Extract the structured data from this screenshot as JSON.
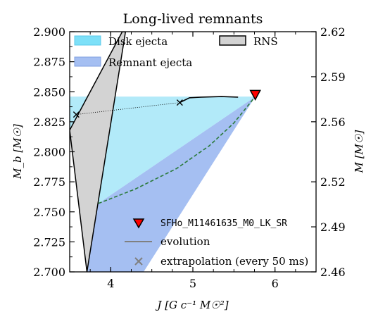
{
  "chart_data": {
    "type": "area",
    "title": "Long-lived remnants",
    "xlabel": "J [G c⁻¹ M☉²]",
    "ylabel": "M_b [M☉]",
    "ylabel_right": "M [M☉]",
    "xlim": [
      3.5,
      6.5
    ],
    "ylim": [
      2.7,
      2.9
    ],
    "x_ticks": [
      "4",
      "5",
      "6"
    ],
    "y_ticks": [
      "2.700",
      "2.725",
      "2.750",
      "2.775",
      "2.800",
      "2.825",
      "2.850",
      "2.875",
      "2.900"
    ],
    "y_ticks_right": [
      "2.46",
      "2.49",
      "2.52",
      "2.56",
      "2.59",
      "2.62"
    ],
    "colors": {
      "disk": "#b2eaf9",
      "remnant": "#a5bff2",
      "rns": "#d3d3d3",
      "boundary": "#2a7a3a",
      "marker": "#ff0000"
    },
    "legend_top": [
      {
        "label": "Disk ejecta",
        "color": "#7de0f8"
      },
      {
        "label": "Remnant ejecta",
        "color": "#a5bff2"
      },
      {
        "label": "RNS",
        "color": "#d3d3d3"
      }
    ],
    "legend_bottom": [
      {
        "label": "SFHo_M11461635_M0_LK_SR",
        "symbol": "red-down-triangle"
      },
      {
        "label": "evolution",
        "symbol": "gray-line"
      },
      {
        "label": "extrapolation (every 50 ms)",
        "symbol": "gray-x"
      }
    ],
    "rns_band": {
      "left": [
        [
          3.5,
          2.818
        ],
        [
          4.14,
          2.9
        ]
      ],
      "right": [
        [
          3.71,
          2.7
        ],
        [
          4.18,
          2.9
        ]
      ]
    },
    "disk_region": [
      [
        3.37,
        2.846
      ],
      [
        5.76,
        2.846
      ],
      [
        3.85,
        2.757
      ]
    ],
    "remnant_region": [
      [
        3.85,
        2.757
      ],
      [
        5.76,
        2.846
      ],
      [
        4.4,
        2.7
      ],
      [
        3.71,
        2.7
      ]
    ],
    "boundary_curve": [
      [
        3.85,
        2.757
      ],
      [
        4.3,
        2.769
      ],
      [
        4.8,
        2.786
      ],
      [
        5.2,
        2.805
      ],
      [
        5.5,
        2.824
      ],
      [
        5.76,
        2.846
      ]
    ],
    "evolution_curve": [
      [
        4.84,
        2.841
      ],
      [
        4.96,
        2.845
      ],
      [
        5.1,
        2.8455
      ],
      [
        5.35,
        2.846
      ],
      [
        5.55,
        2.8455
      ]
    ],
    "extrapolation_points": [
      [
        3.58,
        2.831
      ],
      [
        4.84,
        2.841
      ]
    ],
    "marker_point": [
      5.76,
      2.847
    ]
  }
}
